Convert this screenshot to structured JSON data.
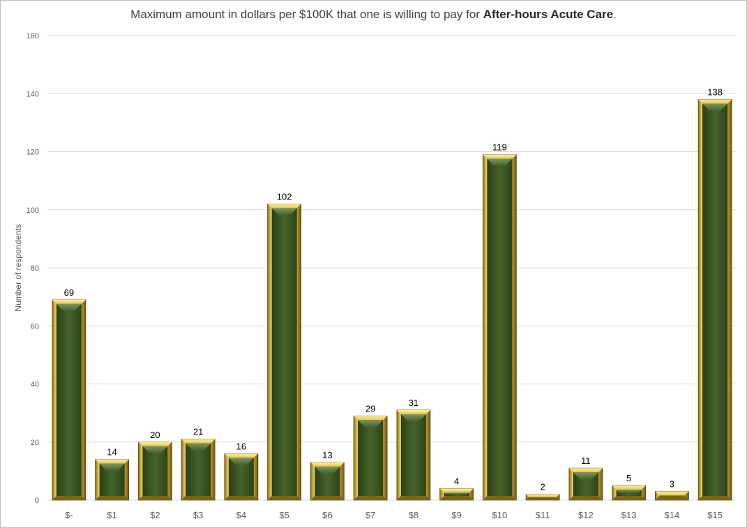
{
  "chart_data": {
    "type": "bar",
    "title_main": "Maximum amount in dollars per $100K that one is willing to pay for ",
    "title_bold": "After-hours Acute Care",
    "title_end": ".",
    "xlabel": "",
    "ylabel": "Number of respondents",
    "categories": [
      "$-",
      "$1",
      "$2",
      "$3",
      "$4",
      "$5",
      "$6",
      "$7",
      "$8",
      "$9",
      "$10",
      "$11",
      "$12",
      "$13",
      "$14",
      "$15"
    ],
    "values": [
      69,
      14,
      20,
      21,
      16,
      102,
      13,
      29,
      31,
      4,
      119,
      2,
      11,
      5,
      3,
      138
    ],
    "data_labels": [
      "69",
      "14",
      "20",
      "21",
      "16",
      "102",
      "13",
      "29",
      "31",
      "4",
      "119",
      "2",
      "11",
      "5",
      "3",
      "138"
    ],
    "ylim": [
      0,
      160
    ],
    "yticks": [
      0,
      20,
      40,
      60,
      80,
      100,
      120,
      140,
      160
    ],
    "ytick_labels": [
      "0",
      "20",
      "40",
      "60",
      "80",
      "100",
      "120",
      "140",
      "160"
    ],
    "grid": true,
    "legend": "none",
    "colors": {
      "bar_face": "#3f5c22",
      "bar_face_dark": "#2e4418",
      "bar_frame_light": "#ffe27a",
      "bar_frame_mid": "#d4b03c",
      "bar_frame_dark": "#7a6418",
      "gridline": "#d9d9d9"
    }
  }
}
